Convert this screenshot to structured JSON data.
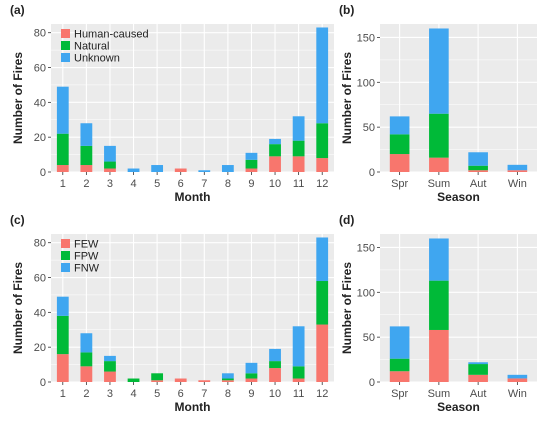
{
  "colors": {
    "panel_bg": "#ebebeb",
    "grid": "#ffffff",
    "red": "#f8766d",
    "green": "#00ba38",
    "blue": "#3fa6f0",
    "text": "#222222",
    "tick_text": "#4d4d4d"
  },
  "chart_data": [
    {
      "panel": "(a)",
      "type": "bar",
      "stacked": true,
      "xlabel": "Month",
      "ylabel": "Number of Fires",
      "ylim": [
        0,
        85
      ],
      "yticks": [
        0,
        20,
        40,
        60,
        80
      ],
      "categories": [
        "1",
        "2",
        "3",
        "4",
        "5",
        "6",
        "7",
        "8",
        "9",
        "10",
        "11",
        "12"
      ],
      "legend": "top-left",
      "series": [
        {
          "name": "Human-caused",
          "color": "red",
          "values": [
            4,
            4,
            2,
            0,
            0,
            2,
            0,
            0,
            2,
            9,
            9,
            8
          ]
        },
        {
          "name": "Natural",
          "color": "green",
          "values": [
            18,
            11,
            4,
            0,
            0,
            0,
            0,
            0,
            5,
            7,
            9,
            20
          ]
        },
        {
          "name": "Unknown",
          "color": "blue",
          "values": [
            27,
            13,
            9,
            2,
            4,
            0,
            1,
            4,
            4,
            3,
            14,
            55
          ]
        }
      ]
    },
    {
      "panel": "(b)",
      "type": "bar",
      "stacked": true,
      "xlabel": "Season",
      "ylabel": "Number of Fires",
      "ylim": [
        0,
        165
      ],
      "yticks": [
        0,
        50,
        100,
        150
      ],
      "categories": [
        "Spr",
        "Sum",
        "Aut",
        "Win"
      ],
      "series": [
        {
          "name": "Human-caused",
          "color": "red",
          "values": [
            20,
            16,
            2,
            2
          ]
        },
        {
          "name": "Natural",
          "color": "green",
          "values": [
            22,
            49,
            5,
            0
          ]
        },
        {
          "name": "Unknown",
          "color": "blue",
          "values": [
            20,
            95,
            15,
            6
          ]
        }
      ]
    },
    {
      "panel": "(c)",
      "type": "bar",
      "stacked": true,
      "xlabel": "Month",
      "ylabel": "Number of Fires",
      "ylim": [
        0,
        85
      ],
      "yticks": [
        0,
        20,
        40,
        60,
        80
      ],
      "categories": [
        "1",
        "2",
        "3",
        "4",
        "5",
        "6",
        "7",
        "8",
        "9",
        "10",
        "11",
        "12"
      ],
      "legend": "top-left",
      "series": [
        {
          "name": "FEW",
          "color": "red",
          "values": [
            16,
            9,
            6,
            0,
            1,
            2,
            1,
            1,
            2,
            8,
            2,
            33
          ]
        },
        {
          "name": "FPW",
          "color": "green",
          "values": [
            22,
            8,
            6,
            2,
            4,
            0,
            0,
            1,
            3,
            4,
            7,
            25
          ]
        },
        {
          "name": "FNW",
          "color": "blue",
          "values": [
            11,
            11,
            3,
            0,
            0,
            0,
            0,
            3,
            6,
            7,
            23,
            25
          ]
        }
      ]
    },
    {
      "panel": "(d)",
      "type": "bar",
      "stacked": true,
      "xlabel": "Season",
      "ylabel": "Number of Fires",
      "ylim": [
        0,
        165
      ],
      "yticks": [
        0,
        50,
        100,
        150
      ],
      "categories": [
        "Spr",
        "Sum",
        "Aut",
        "Win"
      ],
      "series": [
        {
          "name": "FEW",
          "color": "red",
          "values": [
            12,
            58,
            8,
            4
          ]
        },
        {
          "name": "FPW",
          "color": "green",
          "values": [
            14,
            55,
            12,
            0
          ]
        },
        {
          "name": "FNW",
          "color": "blue",
          "values": [
            36,
            47,
            2,
            4
          ]
        }
      ]
    }
  ]
}
